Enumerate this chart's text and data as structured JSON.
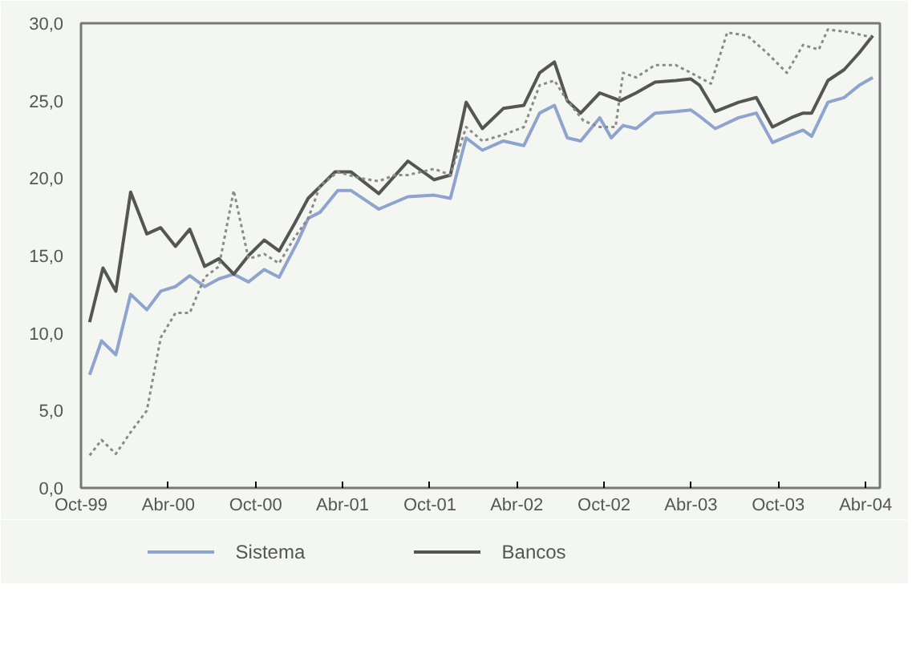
{
  "chart_data": {
    "type": "line",
    "xlim": [
      "1999-10-01",
      "2004-05-01"
    ],
    "ylim": [
      0,
      30
    ],
    "xticks": [
      {
        "value": "1999-10-01",
        "label": "Oct-99"
      },
      {
        "value": "2000-04-01",
        "label": "Abr-00"
      },
      {
        "value": "2000-10-01",
        "label": "Oct-00"
      },
      {
        "value": "2001-04-01",
        "label": "Abr-01"
      },
      {
        "value": "2001-10-01",
        "label": "Oct-01"
      },
      {
        "value": "2002-04-01",
        "label": "Abr-02"
      },
      {
        "value": "2002-10-01",
        "label": "Oct-02"
      },
      {
        "value": "2003-04-01",
        "label": "Abr-03"
      },
      {
        "value": "2003-10-01",
        "label": "Oct-03"
      },
      {
        "value": "2004-04-01",
        "label": "Abr-04"
      }
    ],
    "yticks": [
      {
        "value": 0,
        "label": "0,0"
      },
      {
        "value": 5,
        "label": "5,0"
      },
      {
        "value": 10,
        "label": "10,0"
      },
      {
        "value": 15,
        "label": "15,0"
      },
      {
        "value": 20,
        "label": "20,0"
      },
      {
        "value": 25,
        "label": "25,0"
      },
      {
        "value": 30,
        "label": "30,0"
      }
    ],
    "legend": "bottom",
    "series": [
      {
        "name": "Sistema",
        "color": "#8fa3cf",
        "line_style": "solid",
        "x": [
          "1999-10-19",
          "1999-11-13",
          "1999-12-13",
          "2000-01-13",
          "2000-02-16",
          "2000-03-16",
          "2000-04-16",
          "2000-05-16",
          "2000-06-16",
          "2000-07-16",
          "2000-08-16",
          "2000-09-16",
          "2000-10-19",
          "2000-11-19",
          "2000-12-28",
          "2001-01-19",
          "2001-02-13",
          "2001-03-22",
          "2001-04-19",
          "2001-06-16",
          "2001-08-16",
          "2001-10-10",
          "2001-11-13",
          "2001-12-16",
          "2002-01-19",
          "2002-03-04",
          "2002-04-16",
          "2002-05-19",
          "2002-06-19",
          "2002-07-16",
          "2002-08-13",
          "2002-09-22",
          "2002-10-16",
          "2002-11-10",
          "2002-12-07",
          "2003-01-16",
          "2003-02-28",
          "2003-04-01",
          "2003-04-19",
          "2003-05-22",
          "2003-07-10",
          "2003-08-16",
          "2003-09-19",
          "2003-10-28",
          "2003-11-22",
          "2003-12-10",
          "2004-01-13",
          "2004-02-16",
          "2004-03-19",
          "2004-04-16"
        ],
        "values": [
          7.3,
          9.5,
          8.6,
          12.5,
          11.5,
          12.7,
          13.0,
          13.7,
          13.0,
          13.5,
          13.8,
          13.3,
          14.1,
          13.6,
          15.9,
          17.4,
          17.8,
          19.2,
          19.2,
          18.0,
          18.8,
          18.9,
          18.7,
          22.6,
          21.8,
          22.4,
          22.1,
          24.2,
          24.7,
          22.6,
          22.4,
          23.9,
          22.6,
          23.4,
          23.2,
          24.2,
          24.3,
          24.4,
          24.0,
          23.2,
          23.9,
          24.2,
          22.3,
          22.8,
          23.1,
          22.7,
          24.9,
          25.2,
          26.0,
          26.5
        ]
      },
      {
        "name": "Bancos",
        "color": "#555555",
        "line_style": "solid",
        "x": [
          "1999-10-19",
          "1999-11-16",
          "1999-12-13",
          "2000-01-13",
          "2000-02-16",
          "2000-03-16",
          "2000-04-16",
          "2000-05-16",
          "2000-06-16",
          "2000-07-16",
          "2000-08-16",
          "2000-09-16",
          "2000-10-19",
          "2000-11-19",
          "2000-12-22",
          "2001-01-19",
          "2001-03-16",
          "2001-04-19",
          "2001-06-16",
          "2001-08-16",
          "2001-10-10",
          "2001-11-13",
          "2001-12-16",
          "2002-01-19",
          "2002-03-04",
          "2002-04-16",
          "2002-05-19",
          "2002-06-19",
          "2002-07-16",
          "2002-08-13",
          "2002-09-22",
          "2002-11-04",
          "2002-12-07",
          "2003-01-16",
          "2003-02-28",
          "2003-04-01",
          "2003-04-19",
          "2003-05-22",
          "2003-07-10",
          "2003-08-16",
          "2003-09-19",
          "2003-10-28",
          "2003-11-22",
          "2003-12-10",
          "2004-01-13",
          "2004-02-16",
          "2004-03-19",
          "2004-04-16"
        ],
        "values": [
          10.7,
          14.2,
          12.7,
          19.1,
          16.4,
          16.8,
          15.6,
          16.7,
          14.3,
          14.8,
          13.8,
          15.0,
          16.0,
          15.3,
          17.1,
          18.7,
          20.4,
          20.4,
          19.0,
          21.1,
          19.9,
          20.2,
          24.9,
          23.2,
          24.5,
          24.7,
          26.8,
          27.5,
          25.0,
          24.2,
          25.5,
          25.0,
          25.5,
          26.2,
          26.3,
          26.4,
          26.0,
          24.3,
          24.9,
          25.2,
          23.3,
          23.9,
          24.2,
          24.2,
          26.3,
          27.0,
          28.1,
          29.2
        ]
      },
      {
        "color": "#8a8a8a",
        "line_style": "dotted",
        "x": [
          "1999-10-19",
          "1999-11-13",
          "1999-12-13",
          "2000-01-13",
          "2000-02-16",
          "2000-03-16",
          "2000-04-16",
          "2000-05-16",
          "2000-06-16",
          "2000-07-16",
          "2000-08-16",
          "2000-09-16",
          "2000-10-19",
          "2000-11-19",
          "2000-12-22",
          "2001-01-19",
          "2001-02-13",
          "2001-03-22",
          "2001-05-07",
          "2001-06-16",
          "2001-07-19",
          "2001-08-16",
          "2001-10-10",
          "2001-11-13",
          "2001-12-16",
          "2002-01-19",
          "2002-03-04",
          "2002-04-16",
          "2002-05-19",
          "2002-06-19",
          "2002-07-16",
          "2002-08-19",
          "2002-09-22",
          "2002-10-25",
          "2002-11-10",
          "2002-12-07",
          "2003-01-16",
          "2003-02-28",
          "2003-04-01",
          "2003-05-13",
          "2003-06-16",
          "2003-07-28",
          "2003-09-07",
          "2003-10-19",
          "2003-11-22",
          "2003-12-25",
          "2004-01-13",
          "2004-03-01",
          "2004-04-13"
        ],
        "values": [
          2.1,
          3.1,
          2.2,
          3.6,
          5.0,
          9.7,
          11.3,
          11.3,
          13.6,
          14.3,
          19.2,
          14.8,
          15.1,
          14.5,
          16.2,
          17.4,
          19.5,
          20.4,
          20.0,
          19.8,
          20.2,
          20.2,
          20.6,
          20.2,
          23.3,
          22.4,
          22.8,
          23.3,
          26.0,
          26.3,
          25.0,
          23.7,
          23.3,
          23.3,
          26.8,
          26.5,
          27.3,
          27.3,
          26.8,
          26.1,
          29.4,
          29.2,
          28.1,
          26.8,
          28.6,
          28.3,
          29.6,
          29.4,
          29.1
        ]
      }
    ]
  }
}
